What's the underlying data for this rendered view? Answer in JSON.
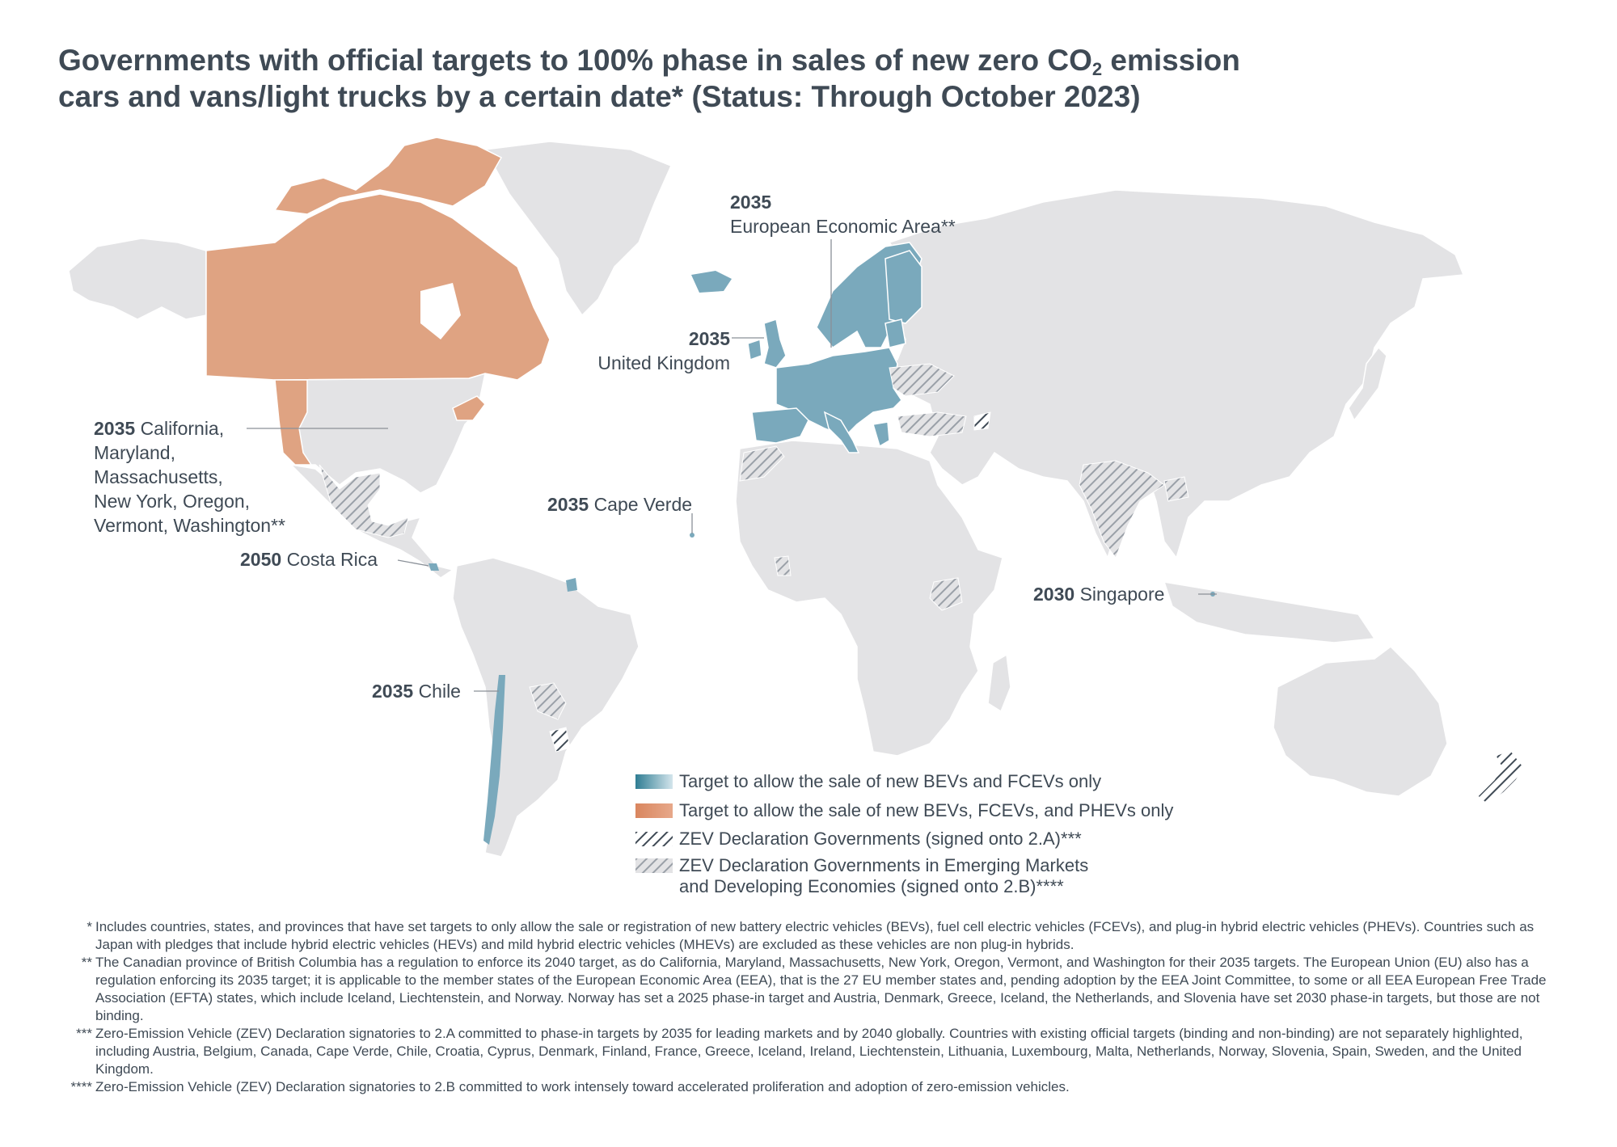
{
  "title": {
    "line1_pre": "Governments with official targets to 100% phase in sales of new zero CO",
    "line1_sub": "2",
    "line1_post": " emission",
    "line2": "cars and vans/light trucks by a certain date* (Status: Through October 2023)"
  },
  "labels": {
    "eea": {
      "year": "2035",
      "name": "European Economic Area**"
    },
    "uk": {
      "year": "2035",
      "name": "United Kingdom"
    },
    "us_states": {
      "year": "2035",
      "line1": "California,",
      "line2": "Maryland,",
      "line3": "Massachusetts,",
      "line4": "New York, Oregon,",
      "line5": "Vermont, Washington**"
    },
    "cape_verde": {
      "year": "2035",
      "name": "Cape Verde"
    },
    "costa_rica": {
      "year": "2050",
      "name": "Costa Rica"
    },
    "singapore": {
      "year": "2030",
      "name": "Singapore"
    },
    "chile": {
      "year": "2035",
      "name": "Chile"
    }
  },
  "legend": {
    "items": [
      {
        "label": "Target to allow the sale of new BEVs and FCEVs only",
        "color_start": "#2f7d93",
        "color_end": "#c9dfe7"
      },
      {
        "label": "Target to allow the sale of new BEVs, FCEVs, and PHEVs only",
        "color_start": "#d9865f",
        "color_end": "#e7a88a"
      },
      {
        "label": "ZEV Declaration Governments (signed onto 2.A)***",
        "color_start": "#3f4a55",
        "color_end": "#ffffff"
      },
      {
        "label": "ZEV Declaration Governments in Emerging Markets",
        "label2": "and Developing Economies (signed onto 2.B)****",
        "color_start": "#a3a8b0",
        "color_end": "#ffffff"
      }
    ]
  },
  "colors": {
    "land": "#e3e3e5",
    "bev_fcev": "#7aa9bc",
    "bev_fcev_phev": "#dfa382",
    "hatch_dark": "#3f4a55",
    "hatch_light": "#9aa0a8",
    "text": "#3f4a55"
  },
  "footnotes": [
    {
      "mark": "*",
      "text": "Includes countries, states, and provinces that have set targets to only allow the sale or registration of new battery electric vehicles (BEVs), fuel cell electric vehicles (FCEVs), and plug-in hybrid electric vehicles (PHEVs). Countries such as Japan with pledges that include hybrid electric vehicles (HEVs) and mild hybrid electric vehicles (MHEVs) are excluded as these vehicles are non plug-in hybrids."
    },
    {
      "mark": "**",
      "text": "The Canadian province of British Columbia has a regulation to enforce its 2040 target, as do California, Maryland, Massachusetts, New York, Oregon, Vermont, and Washington for their 2035 targets. The European Union (EU) also has a regulation enforcing its 2035 target; it is applicable to the member states of the European Economic Area (EEA), that is the 27 EU member states and, pending adoption by the EEA Joint Committee, to some or all EEA European Free Trade Association (EFTA) states, which include Iceland, Liechtenstein, and Norway. Norway has set a 2025 phase-in target and Austria, Denmark, Greece, Iceland, the Netherlands, and Slovenia have set 2030 phase-in targets, but those are not binding."
    },
    {
      "mark": "***",
      "text": "Zero-Emission Vehicle (ZEV) Declaration signatories to 2.A committed to phase-in targets by 2035 for leading markets and by 2040 globally. Countries with existing official targets (binding and non-binding) are not separately highlighted, including Austria, Belgium, Canada, Cape Verde, Chile, Croatia, Cyprus, Denmark, Finland, France, Greece, Iceland, Ireland, Liechtenstein, Lithuania, Luxembourg, Malta, Netherlands, Norway, Slovenia, Spain, Sweden, and the United Kingdom."
    },
    {
      "mark": "****",
      "text": "Zero-Emission Vehicle (ZEV) Declaration signatories to 2.B committed to work intensely toward accelerated proliferation and adoption of zero-emission vehicles."
    }
  ]
}
